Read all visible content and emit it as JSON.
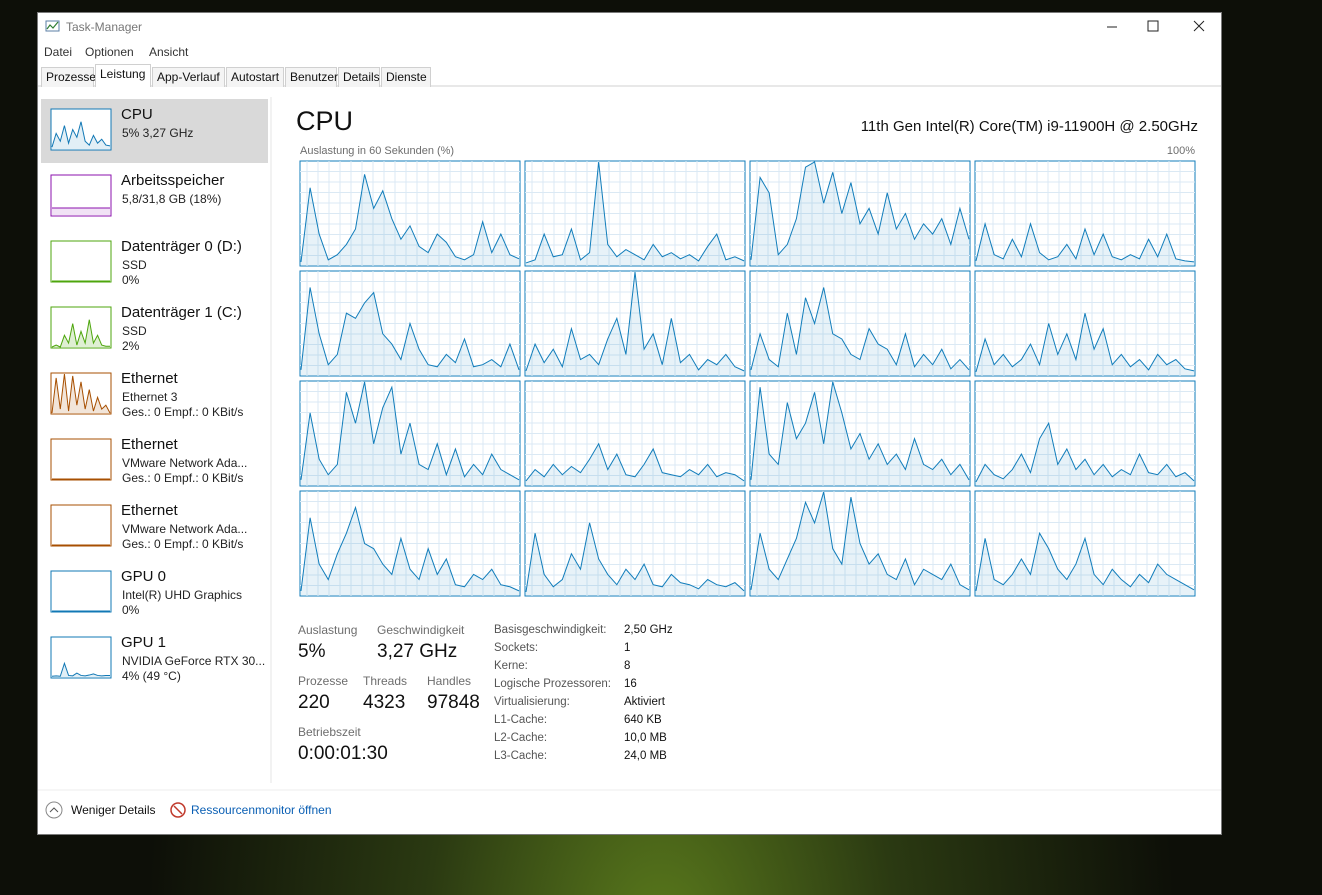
{
  "window": {
    "title": "Task-Manager"
  },
  "menu": [
    "Datei",
    "Optionen",
    "Ansicht"
  ],
  "tabs": [
    "Prozesse",
    "Leistung",
    "App-Verlauf",
    "Autostart",
    "Benutzer",
    "Details",
    "Dienste"
  ],
  "sidebar": [
    {
      "title": "CPU",
      "lines": [
        "5% 3,27 GHz"
      ],
      "graph": [
        5,
        40,
        20,
        60,
        15,
        50,
        30,
        70,
        20,
        10,
        35,
        15,
        25,
        10,
        8
      ]
    },
    {
      "title": "Arbeitsspeicher",
      "lines": [
        "5,8/31,8 GB (18%)"
      ],
      "graph": [
        18,
        18,
        18,
        18,
        18,
        18,
        18,
        18,
        18,
        18,
        18,
        18,
        18,
        18,
        18
      ]
    },
    {
      "title": "Datenträger 0 (D:)",
      "lines": [
        "SSD",
        "0%"
      ],
      "graph": [
        0,
        0,
        0,
        0,
        0,
        0,
        0,
        0,
        0,
        0,
        0,
        0,
        0,
        0,
        0
      ]
    },
    {
      "title": "Datenträger 1 (C:)",
      "lines": [
        "SSD",
        "2%"
      ],
      "graph": [
        0,
        5,
        0,
        30,
        10,
        60,
        5,
        40,
        10,
        70,
        10,
        30,
        5,
        2,
        2
      ]
    },
    {
      "title": "Ethernet",
      "lines": [
        "Ethernet 3",
        "Ges.: 0 Empf.: 0 KBit/s"
      ],
      "graph": [
        0,
        90,
        10,
        100,
        5,
        95,
        20,
        80,
        10,
        60,
        5,
        40,
        10,
        20,
        0
      ]
    },
    {
      "title": "Ethernet",
      "lines": [
        "VMware Network Ada...",
        "Ges.: 0 Empf.: 0 KBit/s"
      ],
      "graph": [
        0,
        0,
        0,
        0,
        0,
        0,
        0,
        0,
        0,
        0,
        0,
        0,
        0,
        0,
        0
      ]
    },
    {
      "title": "Ethernet",
      "lines": [
        "VMware Network Ada...",
        "Ges.: 0 Empf.: 0 KBit/s"
      ],
      "graph": [
        0,
        0,
        0,
        0,
        0,
        0,
        0,
        0,
        0,
        0,
        0,
        0,
        0,
        0,
        0
      ]
    },
    {
      "title": "GPU 0",
      "lines": [
        "Intel(R) UHD Graphics",
        "0%"
      ],
      "graph": [
        0,
        0,
        0,
        0,
        0,
        0,
        0,
        0,
        0,
        0,
        0,
        0,
        0,
        0,
        0
      ]
    },
    {
      "title": "GPU 1",
      "lines": [
        "NVIDIA GeForce RTX 30...",
        "4% (49 °C)"
      ],
      "graph": [
        2,
        3,
        2,
        35,
        4,
        3,
        10,
        4,
        3,
        5,
        8,
        4,
        3,
        4,
        4
      ]
    }
  ],
  "panel": {
    "title": "CPU",
    "model": "11th Gen Intel(R) Core(TM) i9-11900H @ 2.50GHz",
    "graph_label": "Auslastung in 60 Sekunden (%)",
    "graph_max": "100%",
    "cores": [
      [
        3,
        75,
        30,
        5,
        10,
        20,
        35,
        88,
        55,
        72,
        45,
        25,
        38,
        18,
        12,
        30,
        22,
        8,
        5,
        10,
        42,
        12,
        30,
        10,
        6
      ],
      [
        2,
        5,
        30,
        8,
        10,
        35,
        5,
        12,
        100,
        20,
        8,
        15,
        10,
        5,
        20,
        8,
        12,
        6,
        10,
        4,
        18,
        30,
        5,
        8,
        4
      ],
      [
        5,
        85,
        70,
        10,
        20,
        45,
        95,
        100,
        60,
        90,
        50,
        80,
        40,
        55,
        30,
        70,
        35,
        50,
        25,
        40,
        30,
        45,
        20,
        55,
        25
      ],
      [
        4,
        40,
        10,
        6,
        25,
        8,
        40,
        12,
        5,
        8,
        20,
        6,
        35,
        10,
        30,
        8,
        5,
        10,
        6,
        25,
        8,
        30,
        6,
        4,
        3
      ],
      [
        5,
        85,
        40,
        10,
        20,
        60,
        55,
        70,
        80,
        40,
        30,
        15,
        50,
        25,
        10,
        8,
        20,
        12,
        35,
        8,
        10,
        15,
        8,
        30,
        5
      ],
      [
        4,
        30,
        12,
        25,
        8,
        45,
        15,
        20,
        10,
        35,
        55,
        20,
        100,
        25,
        40,
        10,
        55,
        12,
        20,
        5,
        15,
        10,
        20,
        8,
        4
      ],
      [
        5,
        40,
        15,
        8,
        60,
        20,
        75,
        50,
        85,
        40,
        35,
        20,
        15,
        45,
        30,
        25,
        10,
        40,
        8,
        20,
        10,
        25,
        6,
        15,
        5
      ],
      [
        3,
        35,
        10,
        20,
        8,
        15,
        30,
        10,
        50,
        20,
        40,
        15,
        60,
        25,
        45,
        10,
        20,
        8,
        15,
        5,
        20,
        10,
        15,
        6,
        4
      ],
      [
        5,
        70,
        25,
        10,
        20,
        90,
        60,
        100,
        40,
        75,
        95,
        30,
        60,
        20,
        15,
        40,
        10,
        35,
        8,
        20,
        10,
        30,
        15,
        10,
        5
      ],
      [
        4,
        15,
        8,
        20,
        10,
        18,
        12,
        25,
        40,
        15,
        30,
        10,
        8,
        20,
        35,
        12,
        10,
        8,
        15,
        10,
        20,
        8,
        12,
        10,
        4
      ],
      [
        5,
        95,
        30,
        20,
        80,
        45,
        60,
        90,
        40,
        100,
        70,
        35,
        50,
        25,
        40,
        20,
        30,
        15,
        45,
        20,
        15,
        25,
        10,
        20,
        5
      ],
      [
        3,
        20,
        10,
        6,
        15,
        30,
        12,
        45,
        60,
        20,
        35,
        15,
        25,
        10,
        20,
        8,
        15,
        10,
        30,
        12,
        10,
        20,
        8,
        12,
        4
      ],
      [
        4,
        75,
        30,
        15,
        40,
        60,
        85,
        50,
        45,
        30,
        20,
        55,
        25,
        15,
        45,
        20,
        35,
        10,
        8,
        20,
        15,
        25,
        10,
        8,
        4
      ],
      [
        3,
        60,
        20,
        8,
        15,
        40,
        25,
        70,
        35,
        20,
        10,
        25,
        15,
        30,
        10,
        8,
        20,
        12,
        10,
        6,
        15,
        10,
        8,
        12,
        4
      ],
      [
        5,
        60,
        25,
        15,
        35,
        55,
        90,
        70,
        100,
        45,
        30,
        95,
        50,
        30,
        40,
        20,
        15,
        35,
        10,
        25,
        20,
        15,
        30,
        10,
        5
      ],
      [
        4,
        55,
        15,
        10,
        20,
        35,
        20,
        60,
        45,
        25,
        15,
        30,
        55,
        20,
        10,
        25,
        15,
        8,
        20,
        12,
        30,
        20,
        15,
        10,
        5
      ]
    ],
    "stats": [
      {
        "label": "Auslastung",
        "value": "5%"
      },
      {
        "label": "Geschwindigkeit",
        "value": "3,27 GHz"
      },
      {
        "label": "Prozesse",
        "value": "220"
      },
      {
        "label": "Threads",
        "value": "4323"
      },
      {
        "label": "Handles",
        "value": "97848"
      },
      {
        "label": "Betriebszeit",
        "value": "0:00:01:30"
      }
    ],
    "details": [
      [
        "Basisgeschwindigkeit:",
        "2,50 GHz"
      ],
      [
        "Sockets:",
        "1"
      ],
      [
        "Kerne:",
        "8"
      ],
      [
        "Logische Prozessoren:",
        "16"
      ],
      [
        "Virtualisierung:",
        "Aktiviert"
      ],
      [
        "L1-Cache:",
        "640 KB"
      ],
      [
        "L2-Cache:",
        "10,0 MB"
      ],
      [
        "L3-Cache:",
        "24,0 MB"
      ]
    ]
  },
  "footer": {
    "fewer": "Weniger Details",
    "monitor": "Ressourcenmonitor öffnen"
  }
}
